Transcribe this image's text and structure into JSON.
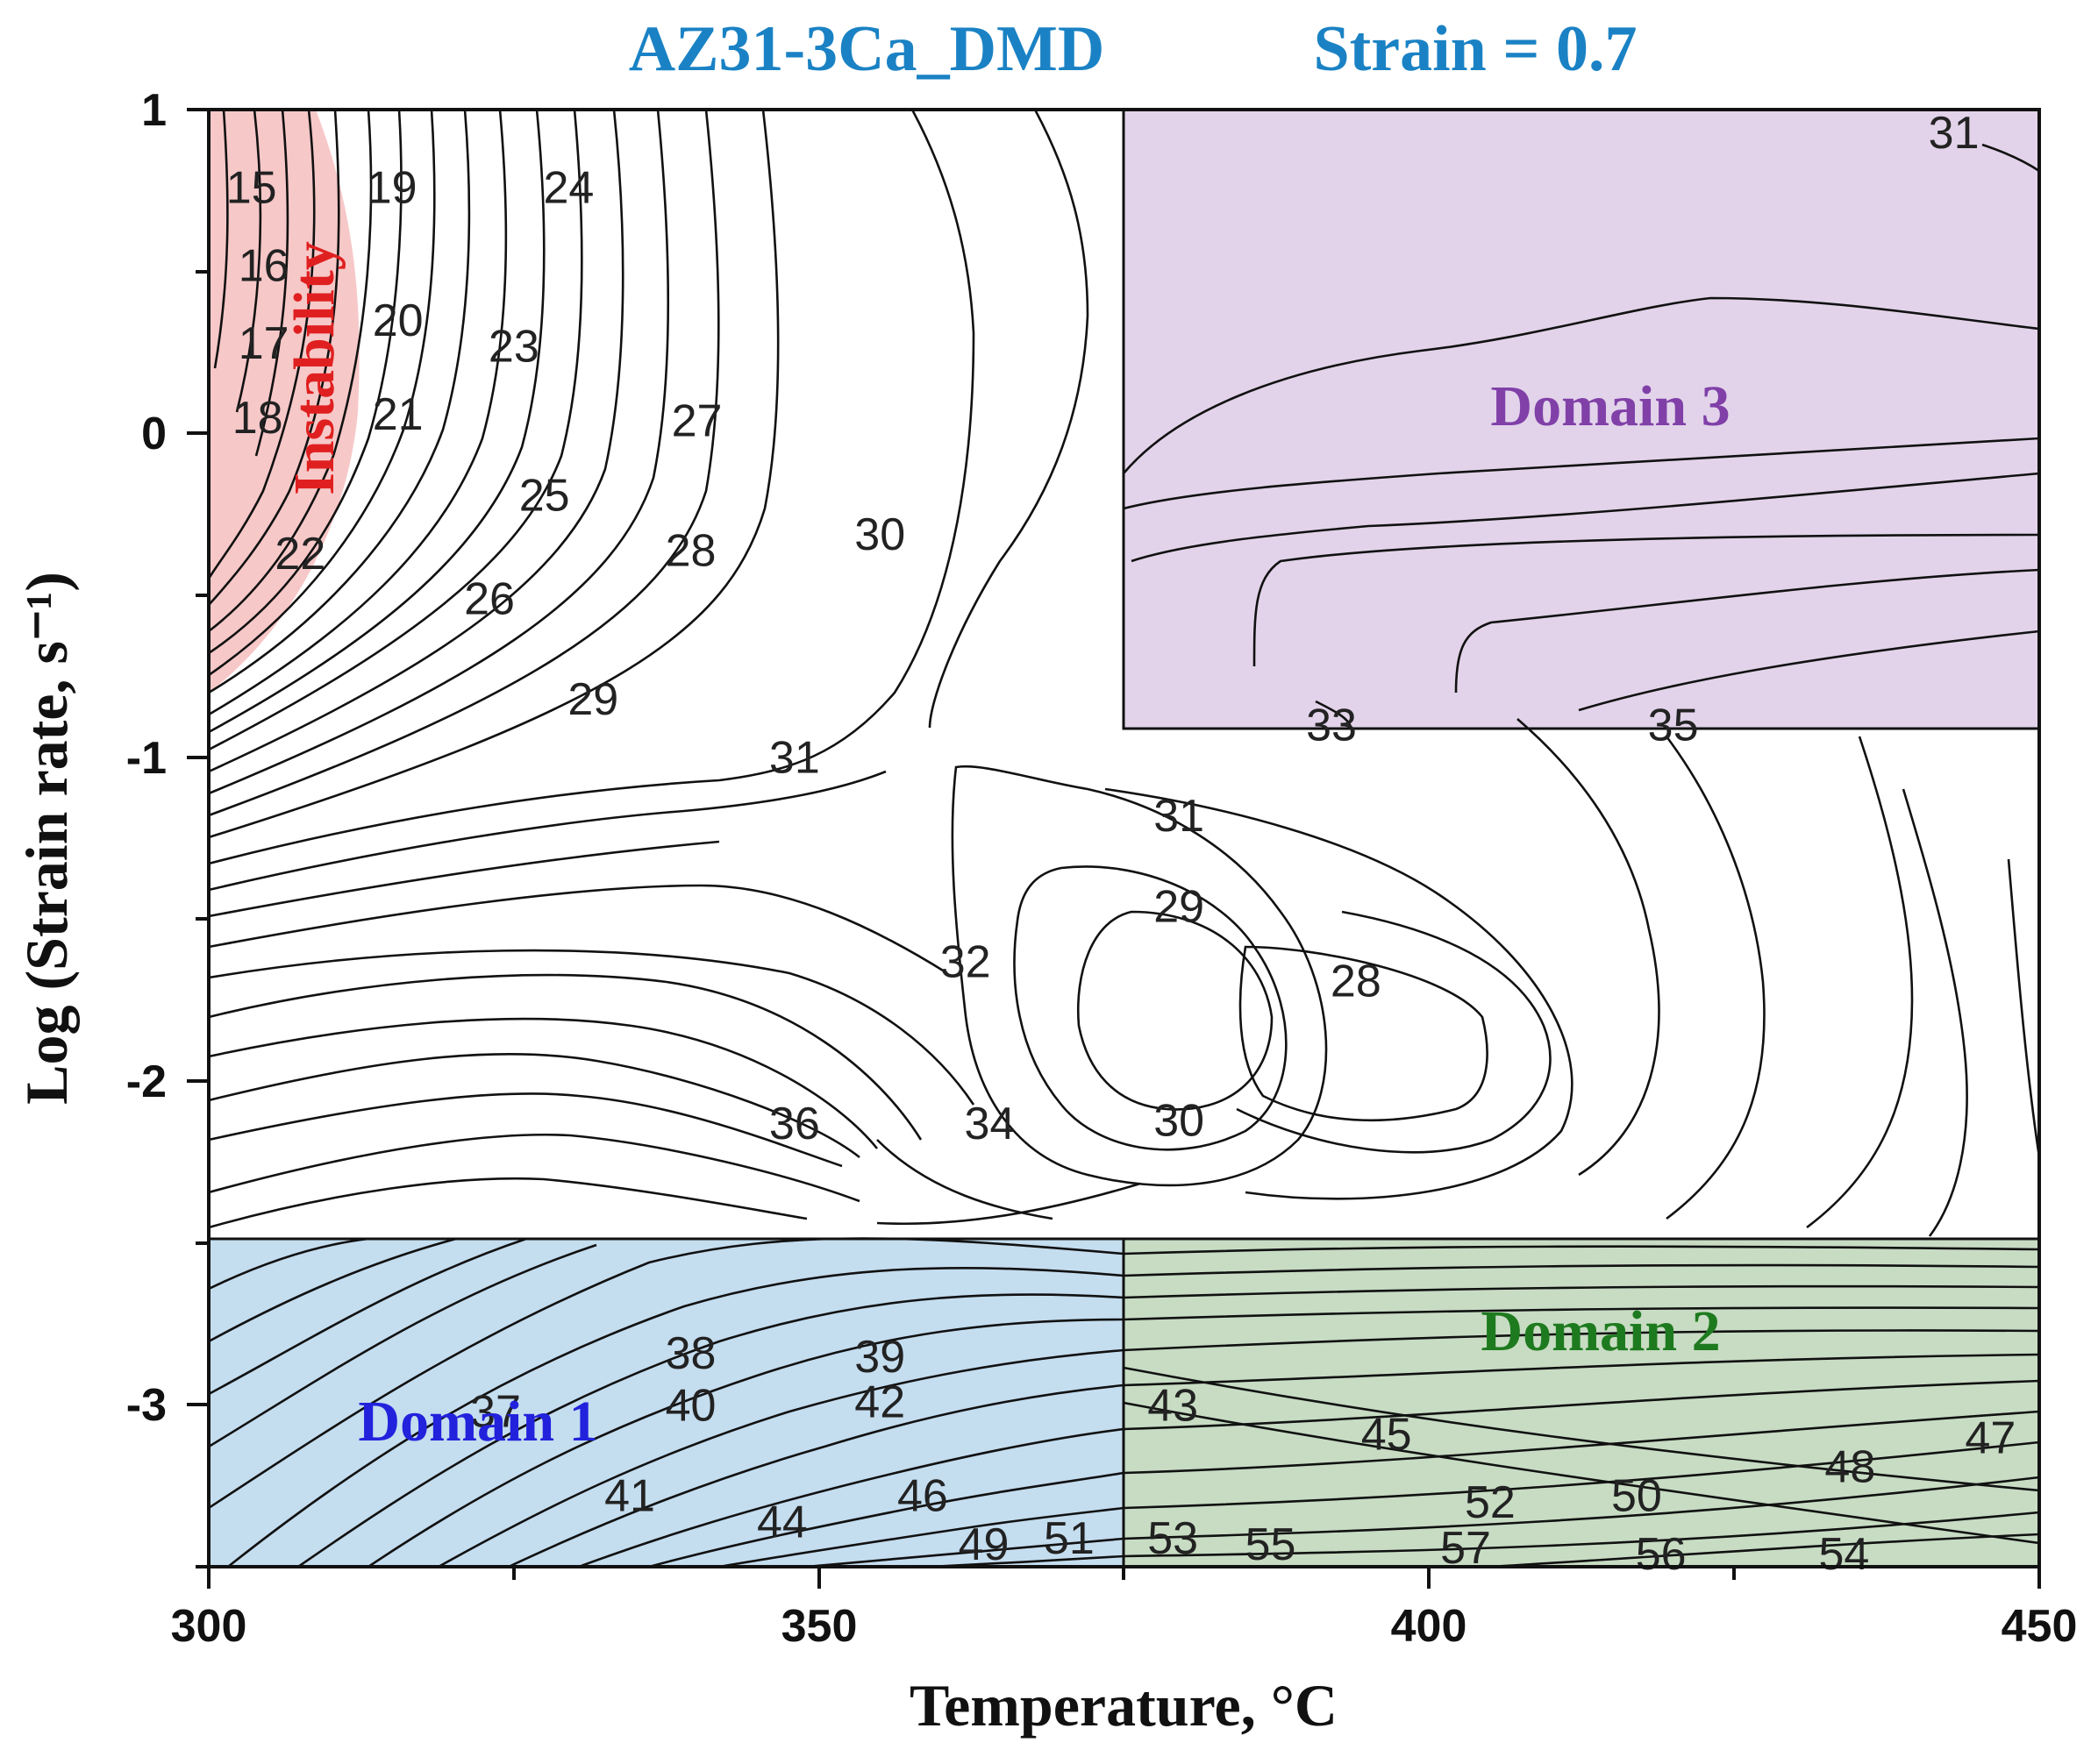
{
  "chart_data": {
    "type": "contour",
    "title": "AZ31-3Ca_DMD",
    "subtitle": "Strain = 0.7",
    "xlabel": "Temperature, °C",
    "ylabel": "Log (Strain rate, s⁻¹)",
    "xlim": [
      300,
      450
    ],
    "ylim": [
      -3.5,
      1
    ],
    "xticks": [
      "300",
      "350",
      "400",
      "450"
    ],
    "yticks": [
      "1",
      "0",
      "-1",
      "-2",
      "-3"
    ],
    "title_color": "#1a82c4",
    "regions": [
      {
        "label": "Instability",
        "color": "#f7c8c8",
        "text_color": "#e02020"
      },
      {
        "label": "Domain 1",
        "x_range": [
          300,
          375
        ],
        "y_range": [
          -3.5,
          -2.5
        ],
        "color": "#c4ddef",
        "text_color": "#2222dd"
      },
      {
        "label": "Domain 2",
        "x_range": [
          375,
          450
        ],
        "y_range": [
          -3.5,
          -2.5
        ],
        "color": "#c7dcc3",
        "text_color": "#1e7a1e"
      },
      {
        "label": "Domain 3",
        "x_range": [
          375,
          450
        ],
        "y_range": [
          -0.93,
          1
        ],
        "color": "#e2d3ea",
        "text_color": "#8040a8"
      }
    ],
    "contour_labels": [
      {
        "text": "15",
        "x": 303.5,
        "y": 0.76
      },
      {
        "text": "16",
        "x": 304.5,
        "y": 0.52
      },
      {
        "text": "17",
        "x": 304.5,
        "y": 0.28
      },
      {
        "text": "18",
        "x": 304,
        "y": 0.05
      },
      {
        "text": "19",
        "x": 315,
        "y": 0.76
      },
      {
        "text": "20",
        "x": 315.5,
        "y": 0.35
      },
      {
        "text": "21",
        "x": 315.5,
        "y": 0.06
      },
      {
        "text": "22",
        "x": 307.5,
        "y": -0.37
      },
      {
        "text": "23",
        "x": 325,
        "y": 0.27
      },
      {
        "text": "24",
        "x": 329.5,
        "y": 0.76
      },
      {
        "text": "25",
        "x": 327.5,
        "y": -0.19
      },
      {
        "text": "26",
        "x": 323,
        "y": -0.51
      },
      {
        "text": "27",
        "x": 340,
        "y": 0.04
      },
      {
        "text": "28",
        "x": 339.5,
        "y": -0.36
      },
      {
        "text": "29",
        "x": 331.5,
        "y": -0.82
      },
      {
        "text": "30",
        "x": 355,
        "y": -0.31
      },
      {
        "text": "31",
        "x": 348,
        "y": -1
      },
      {
        "text": "32",
        "x": 362,
        "y": -1.63
      },
      {
        "text": "36",
        "x": 348,
        "y": -2.13
      },
      {
        "text": "34",
        "x": 364,
        "y": -2.13
      },
      {
        "text": "31",
        "x": 379.5,
        "y": -1.18
      },
      {
        "text": "29",
        "x": 379.5,
        "y": -1.46
      },
      {
        "text": "28",
        "x": 394,
        "y": -1.69
      },
      {
        "text": "30",
        "x": 379.5,
        "y": -2.12
      },
      {
        "text": "33",
        "x": 392,
        "y": -0.9
      },
      {
        "text": "35",
        "x": 420,
        "y": -0.9
      },
      {
        "text": "31",
        "x": 443,
        "y": 0.93
      },
      {
        "text": "38",
        "x": 339.5,
        "y": -2.84
      },
      {
        "text": "39",
        "x": 355,
        "y": -2.85
      },
      {
        "text": "37",
        "x": 323.5,
        "y": -3.02
      },
      {
        "text": "40",
        "x": 339.5,
        "y": -3.0
      },
      {
        "text": "42",
        "x": 355,
        "y": -2.99
      },
      {
        "text": "41",
        "x": 334.5,
        "y": -3.28
      },
      {
        "text": "44",
        "x": 347,
        "y": -3.36
      },
      {
        "text": "46",
        "x": 358.5,
        "y": -3.28
      },
      {
        "text": "49",
        "x": 363.5,
        "y": -3.43
      },
      {
        "text": "51",
        "x": 370.5,
        "y": -3.41
      },
      {
        "text": "43",
        "x": 379,
        "y": -3.0
      },
      {
        "text": "45",
        "x": 396.5,
        "y": -3.09
      },
      {
        "text": "52",
        "x": 405,
        "y": -3.3
      },
      {
        "text": "50",
        "x": 417,
        "y": -3.28
      },
      {
        "text": "48",
        "x": 434.5,
        "y": -3.19
      },
      {
        "text": "47",
        "x": 446,
        "y": -3.1
      },
      {
        "text": "53",
        "x": 379,
        "y": -3.41
      },
      {
        "text": "55",
        "x": 387,
        "y": -3.43
      },
      {
        "text": "57",
        "x": 403,
        "y": -3.44
      },
      {
        "text": "56",
        "x": 419,
        "y": -3.46
      },
      {
        "text": "54",
        "x": 434,
        "y": -3.46
      }
    ]
  }
}
